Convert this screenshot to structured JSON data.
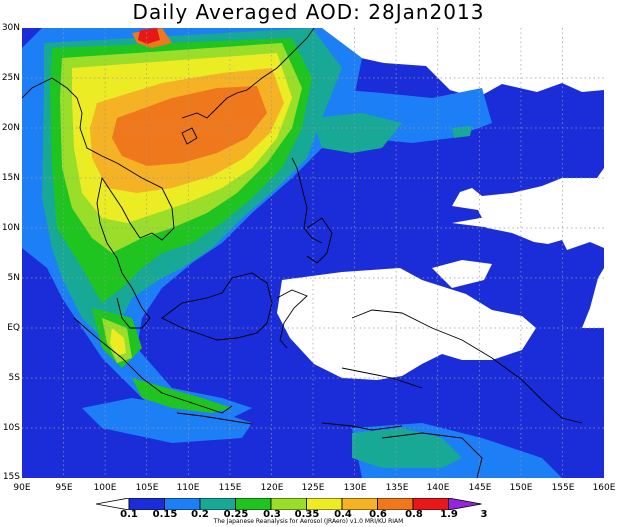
{
  "title": "Daily Averaged AOD: 28Jan2013",
  "map": {
    "lat_labels": [
      "30N",
      "25N",
      "20N",
      "15N",
      "10N",
      "5N",
      "EQ",
      "5S",
      "10S",
      "15S"
    ],
    "lon_labels": [
      "90E",
      "95E",
      "100E",
      "105E",
      "110E",
      "115E",
      "120E",
      "125E",
      "130E",
      "135E",
      "140E",
      "145E",
      "150E",
      "155E",
      "160E"
    ],
    "lon_range": [
      90,
      160
    ],
    "lat_range": [
      -15,
      30
    ]
  },
  "colorbar": {
    "levels": [
      "0.1",
      "0.15",
      "0.2",
      "0.25",
      "0.3",
      "0.35",
      "0.4",
      "0.6",
      "0.8",
      "1.9",
      "3"
    ],
    "colors": [
      "#ffffff",
      "#1a2dd8",
      "#1c7ff5",
      "#18a896",
      "#20c420",
      "#9bde2a",
      "#ecec24",
      "#f5b224",
      "#f0781c",
      "#e81818",
      "#9424e0"
    ]
  },
  "credit": "The Japanese Reanalysis for Aerosol (JRAero) v1.0 MRI/KU RIAM"
}
